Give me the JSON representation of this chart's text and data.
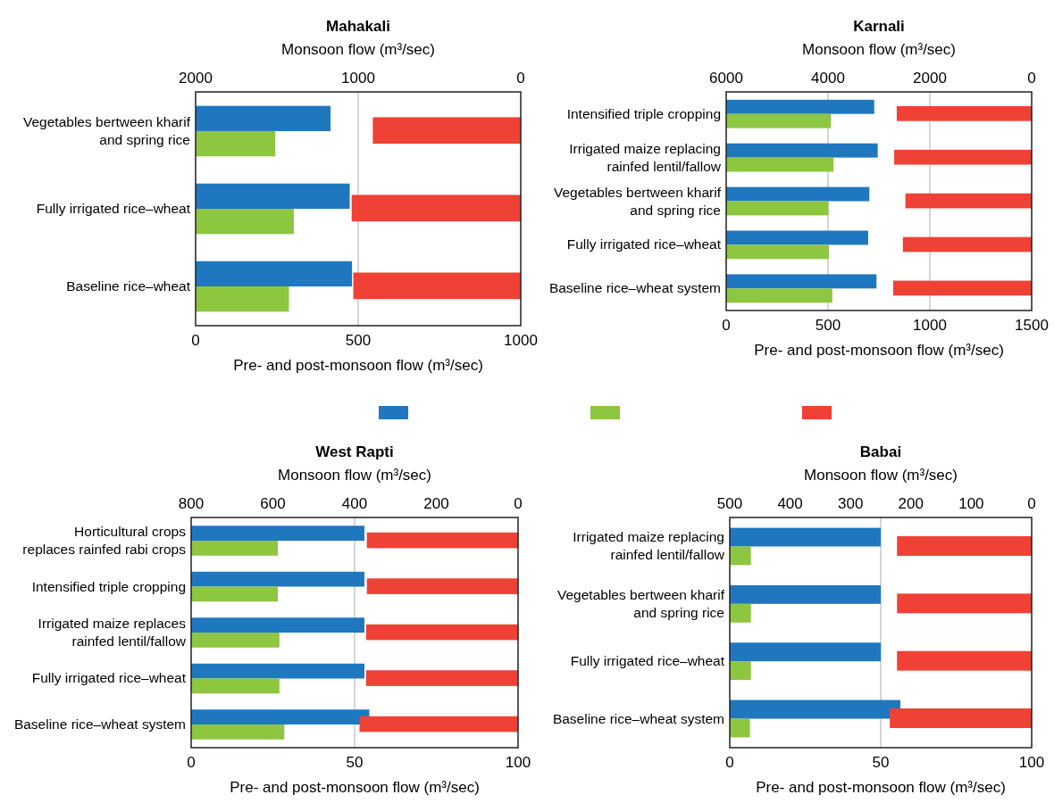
{
  "chart_data": [
    {
      "type": "bar",
      "orientation": "horizontal",
      "title": "Mahakali",
      "xlabel": "Pre- and post-monsoon flow (m³/sec)",
      "x2label": "Monsoon flow (m³/sec)",
      "categories": [
        "Vegetables bertween kharif and spring rice",
        "Fully irrigated rice–wheat",
        "Baseline rice–wheat"
      ],
      "xlim": [
        0,
        1000
      ],
      "xticks": [
        0,
        500,
        1000
      ],
      "x2lim": [
        2000,
        0
      ],
      "x2ticks": [
        2000,
        1000,
        0
      ],
      "grid": "x",
      "series": [
        {
          "color": "#1f77c0",
          "values": [
            415,
            474,
            481
          ]
        },
        {
          "color": "#8dc63f",
          "values": [
            245,
            302,
            287
          ]
        },
        {
          "color": "#ef4136",
          "axis": "x2",
          "values": [
            910,
            1040,
            1030
          ]
        }
      ]
    },
    {
      "type": "bar",
      "orientation": "horizontal",
      "title": "Karnali",
      "xlabel": "Pre- and post-monsoon flow (m³/sec)",
      "x2label": "Monsoon flow (m³/sec)",
      "categories": [
        "Intensified triple cropping",
        "Irrigated maize replacing rainfed lentil/fallow",
        "Vegetables bertween kharif and spring rice",
        "Fully irrigated rice–wheat",
        "Baseline rice–wheat system"
      ],
      "xlim": [
        0,
        1500
      ],
      "xticks": [
        0,
        500,
        1000,
        1500
      ],
      "x2lim": [
        6000,
        0
      ],
      "x2ticks": [
        6000,
        4000,
        2000,
        0
      ],
      "grid": "x",
      "series": [
        {
          "color": "#1f77c0",
          "values": [
            727,
            744,
            703,
            697,
            738
          ]
        },
        {
          "color": "#8dc63f",
          "values": [
            514,
            527,
            502,
            504,
            521
          ]
        },
        {
          "color": "#ef4136",
          "axis": "x2",
          "values": [
            2650,
            2700,
            2480,
            2530,
            2720
          ]
        }
      ]
    },
    {
      "type": "bar",
      "orientation": "horizontal",
      "title": "West Rapti",
      "xlabel": "Pre- and post-monsoon flow (m³/sec)",
      "x2label": "Monsoon flow (m³/sec)",
      "categories": [
        "Horticultural crops replaces rainfed rabi crops",
        "Intensified triple cropping",
        "Irrigated maize replaces rainfed lentil/fallow",
        "Fully irrigated rice–wheat",
        "Baseline rice–wheat system"
      ],
      "xlim": [
        0,
        100
      ],
      "xticks": [
        0,
        50,
        100
      ],
      "x2lim": [
        800,
        0
      ],
      "x2ticks": [
        800,
        600,
        400,
        200,
        0
      ],
      "grid": "x",
      "series": [
        {
          "color": "#1f77c0",
          "values": [
            53,
            53,
            53,
            53,
            54.5
          ]
        },
        {
          "color": "#8dc63f",
          "values": [
            26.5,
            26.5,
            27,
            27,
            28.5
          ]
        },
        {
          "color": "#ef4136",
          "axis": "x2",
          "values": [
            370,
            370,
            372,
            372,
            388
          ]
        }
      ]
    },
    {
      "type": "bar",
      "orientation": "horizontal",
      "title": "Babai",
      "xlabel": "Pre- and post-monsoon flow (m³/sec)",
      "x2label": "Monsoon flow (m³/sec)",
      "categories": [
        "Irrigated maize replacing rainfed lentil/fallow",
        "Vegetables bertween kharif and spring rice",
        "Fully irrigated rice–wheat",
        "Baseline rice–wheat system"
      ],
      "xlim": [
        0,
        100
      ],
      "xticks": [
        0,
        50,
        100
      ],
      "x2lim": [
        500,
        0
      ],
      "x2ticks": [
        500,
        400,
        300,
        200,
        100,
        0
      ],
      "grid": "x",
      "series": [
        {
          "color": "#1f77c0",
          "values": [
            50,
            50,
            50,
            56.5
          ]
        },
        {
          "color": "#8dc63f",
          "values": [
            7,
            7,
            7,
            6.7
          ]
        },
        {
          "color": "#ef4136",
          "axis": "x2",
          "values": [
            223,
            223,
            223,
            235
          ]
        }
      ]
    }
  ]
}
